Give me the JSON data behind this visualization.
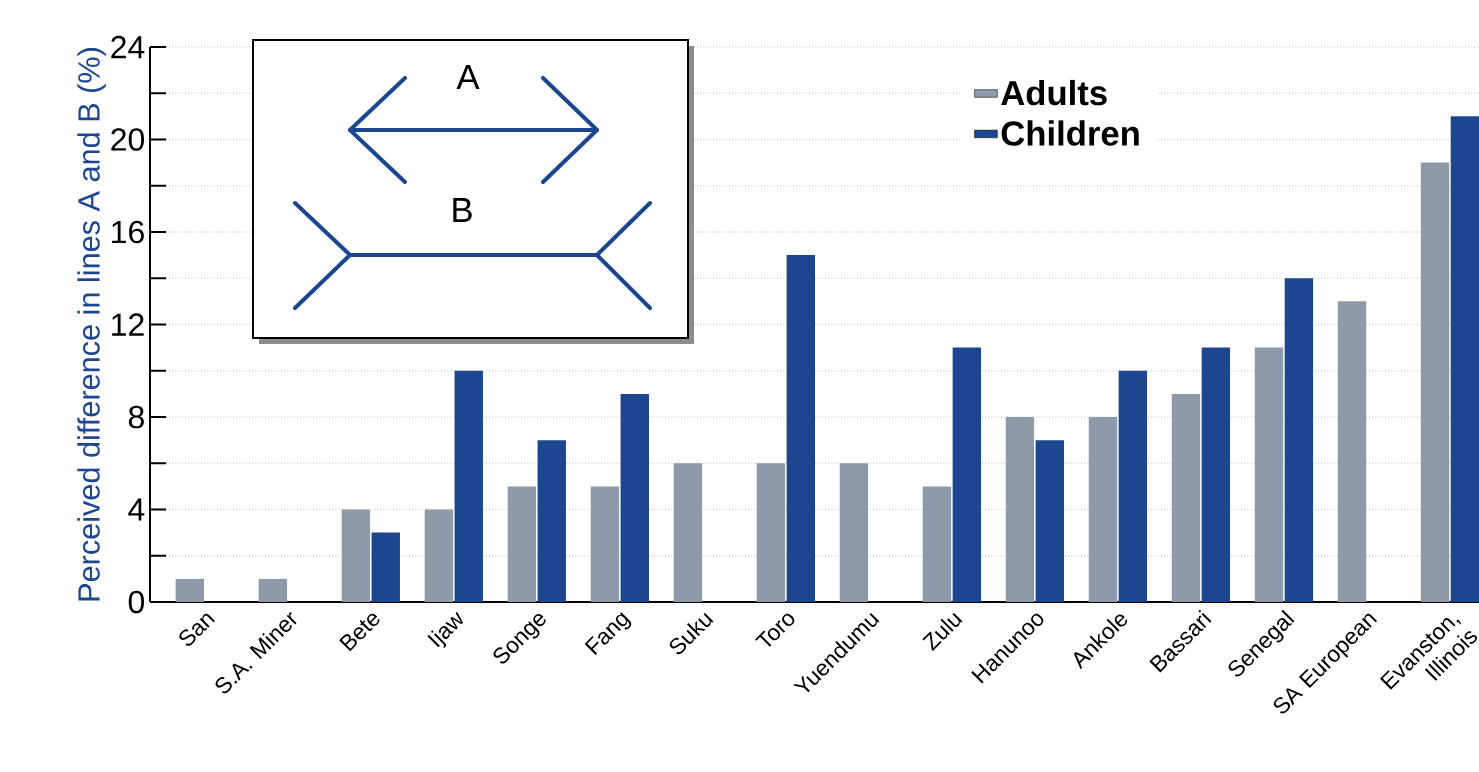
{
  "chart_data": {
    "type": "bar",
    "ylabel": "Perceived difference in lines A and B (%)",
    "categories": [
      "San",
      "S.A. Miner",
      "Bete",
      "Ijaw",
      "Songe",
      "Fang",
      "Suku",
      "Toro",
      "Yuendumu",
      "Zulu",
      "Hanunoo",
      "Ankole",
      "Bassari",
      "Senegal",
      "SA European",
      "Evanston, Illinois"
    ],
    "series": [
      {
        "name": "Adults",
        "color": "#8e9aaa",
        "values": [
          1,
          1,
          4,
          4,
          5,
          5,
          6,
          6,
          6,
          5,
          8,
          8,
          9,
          11,
          13,
          19
        ]
      },
      {
        "name": "Children",
        "color": "#1c4690",
        "values": [
          null,
          null,
          3,
          10,
          7,
          9,
          null,
          15,
          null,
          11,
          7,
          10,
          11,
          14,
          null,
          21
        ]
      }
    ],
    "ylim": [
      0,
      24
    ],
    "yticks": [
      0,
      {
        "value": 2,
        "label": null
      },
      4,
      {
        "value": 6,
        "label": null
      },
      8,
      {
        "value": 10,
        "label": null
      },
      12,
      {
        "value": 14,
        "label": null
      },
      16,
      {
        "value": 18,
        "label": null
      },
      20,
      {
        "value": 22,
        "label": null
      },
      24
    ],
    "grid": "y",
    "legend": "top right",
    "annotations": [
      "A",
      "B"
    ]
  }
}
